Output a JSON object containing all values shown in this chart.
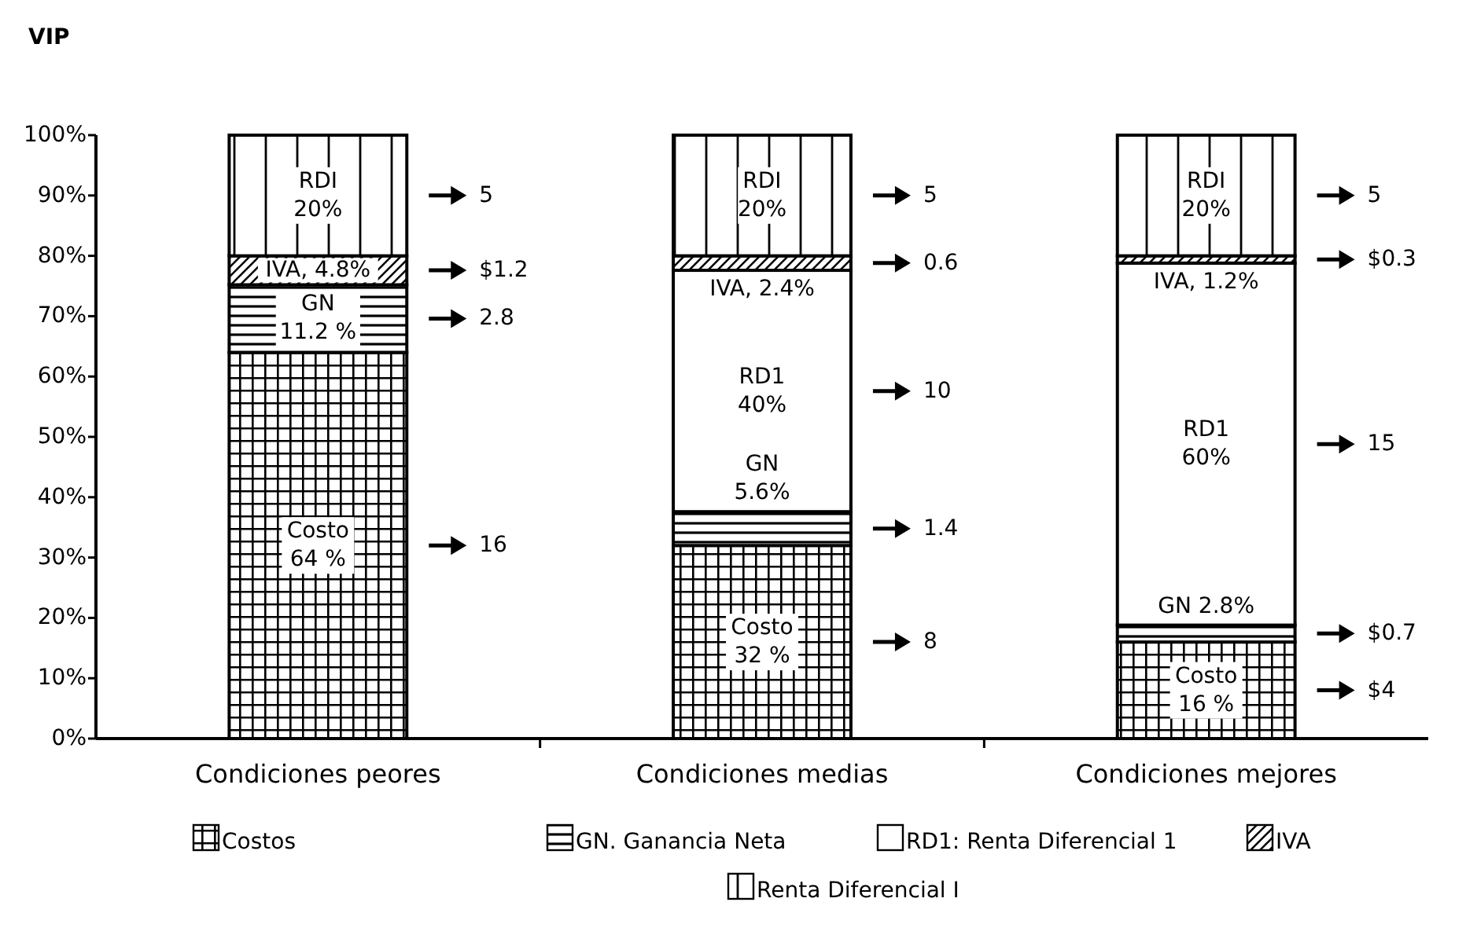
{
  "chart_data": {
    "type": "bar",
    "stacked": true,
    "title": "VIP",
    "categories": [
      "Condiciones peores",
      "Condiciones medias",
      "Condiciones mejores"
    ],
    "ylim": [
      0,
      100
    ],
    "yticks": [
      {
        "value": 0,
        "label": "0%"
      },
      {
        "value": 10,
        "label": "10%"
      },
      {
        "value": 20,
        "label": "20%"
      },
      {
        "value": 30,
        "label": "30%"
      },
      {
        "value": 40,
        "label": "40%"
      },
      {
        "value": 50,
        "label": "50%"
      },
      {
        "value": 60,
        "label": "60%"
      },
      {
        "value": 70,
        "label": "70%"
      },
      {
        "value": 80,
        "label": "80%"
      },
      {
        "value": 90,
        "label": "90%"
      },
      {
        "value": 100,
        "label": "100%"
      }
    ],
    "grid": false,
    "legend": "bottom",
    "series": [
      {
        "name": "Costos",
        "color": "#000000",
        "values": [
          64,
          32,
          16
        ],
        "value_labels": [
          "Costo\n64 %",
          "Costo\n32 %",
          "Costo\n16 %"
        ]
      },
      {
        "name": "GN. Ganancia Neta",
        "color": "#000000",
        "values": [
          11.2,
          5.6,
          2.8
        ],
        "value_labels": [
          "GN\n11.2 %",
          "GN\n5.6%",
          "GN 2.8%"
        ]
      },
      {
        "name": "RD1: Renta Diferencial 1",
        "color": "#000000",
        "values": [
          0,
          40,
          60
        ],
        "value_labels": [
          null,
          "RD1\n40%",
          "RD1\n60%"
        ]
      },
      {
        "name": "IVA",
        "color": "#000000",
        "values": [
          4.8,
          2.4,
          1.2
        ],
        "value_labels": [
          "IVA, 4.8%",
          "IVA, 2.4%",
          "IVA, 1.2%"
        ]
      },
      {
        "name": "Renta Diferencial I",
        "color": "#000000",
        "values": [
          20,
          20,
          20
        ],
        "value_labels": [
          "RDI\n20%",
          "RDI\n20%",
          "RDI\n20%"
        ]
      }
    ],
    "annotations": [
      "5",
      "$1.2",
      "2.8",
      "16",
      "5",
      "0.6",
      "10",
      "1.4",
      "8",
      "5",
      "$0.3",
      "15",
      "$0.7",
      "$4"
    ]
  }
}
